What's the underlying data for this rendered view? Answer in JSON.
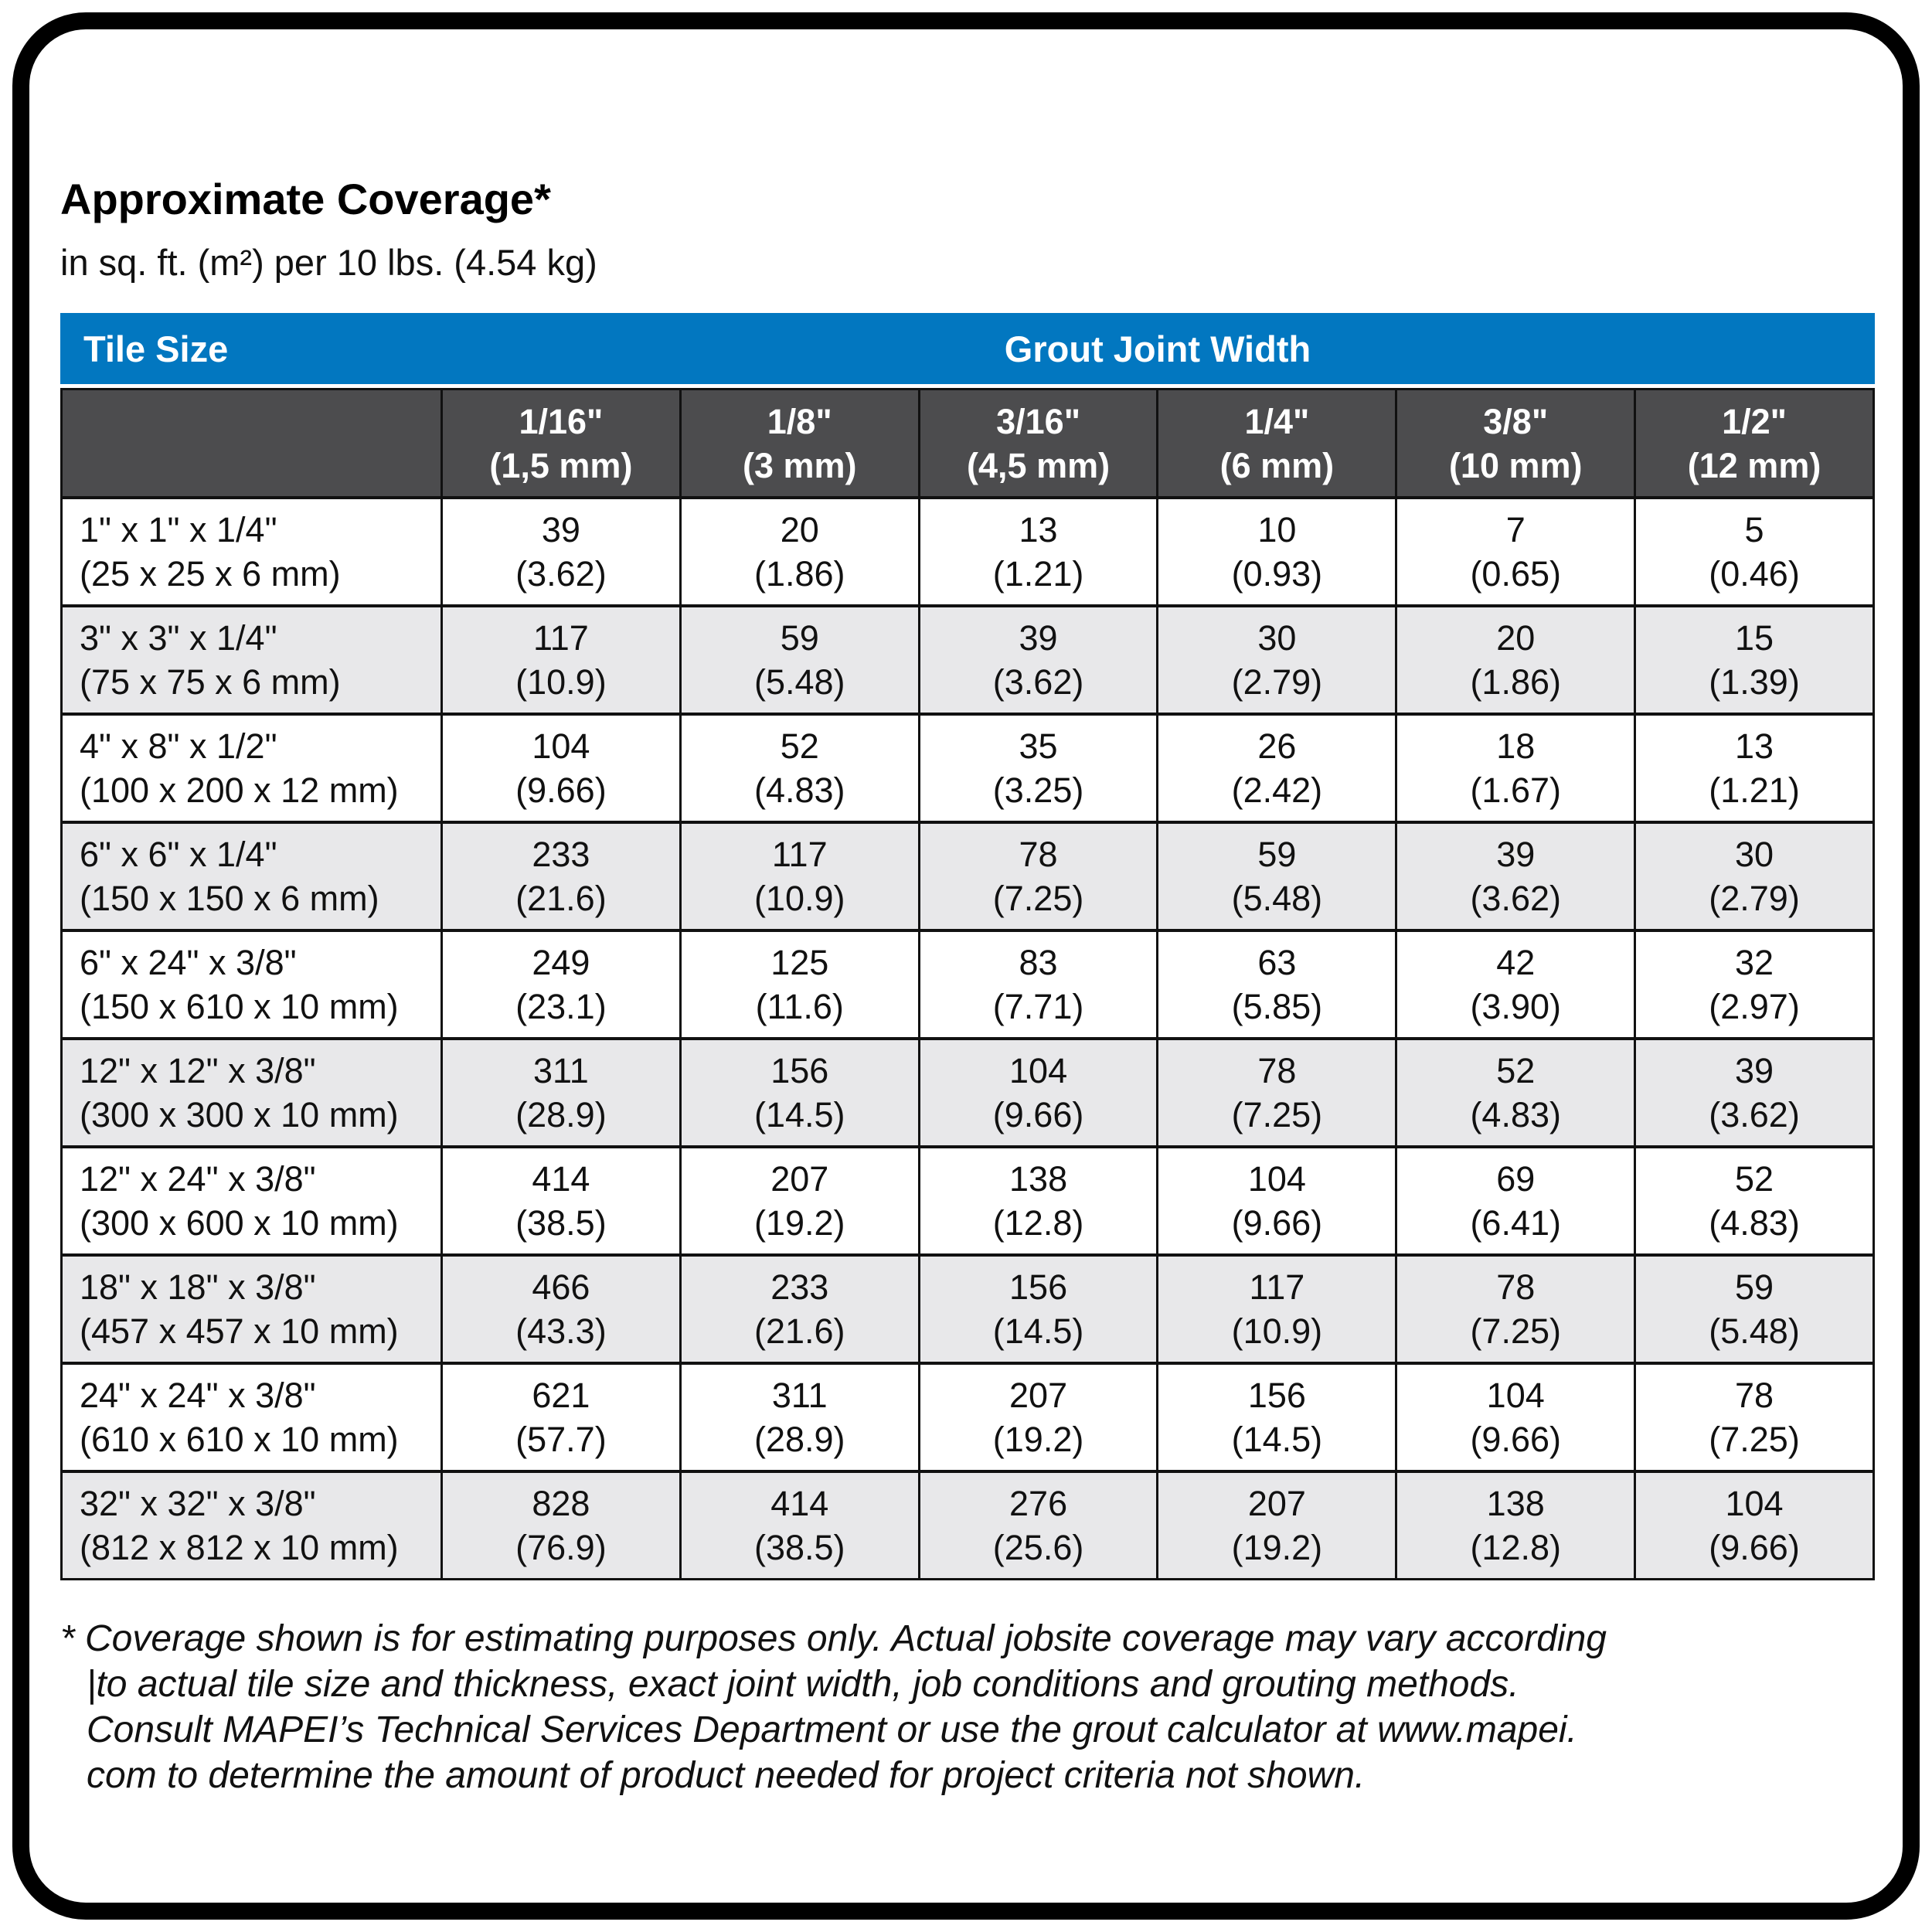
{
  "title": "Approximate Coverage*",
  "subtitle": "in sq. ft. (m²) per 10 lbs. (4.54 kg)",
  "table": {
    "corner_header": "Tile Size",
    "group_header": "Grout Joint Width",
    "columns": [
      {
        "label": "1/16\"",
        "metric": "(1,5 mm)"
      },
      {
        "label": "1/8\"",
        "metric": "(3 mm)"
      },
      {
        "label": "3/16\"",
        "metric": "(4,5 mm)"
      },
      {
        "label": "1/4\"",
        "metric": "(6 mm)"
      },
      {
        "label": "3/8\"",
        "metric": "(10 mm)"
      },
      {
        "label": "1/2\"",
        "metric": "(12 mm)"
      }
    ],
    "rows": [
      {
        "size_in": "1\" x 1\" x 1/4\"",
        "size_mm": "(25 x 25 x 6 mm)",
        "cells": [
          {
            "sqft": "39",
            "m2": "(3.62)"
          },
          {
            "sqft": "20",
            "m2": "(1.86)"
          },
          {
            "sqft": "13",
            "m2": "(1.21)"
          },
          {
            "sqft": "10",
            "m2": "(0.93)"
          },
          {
            "sqft": "7",
            "m2": "(0.65)"
          },
          {
            "sqft": "5",
            "m2": "(0.46)"
          }
        ]
      },
      {
        "size_in": "3\" x 3\" x 1/4\"",
        "size_mm": "(75 x 75 x 6 mm)",
        "cells": [
          {
            "sqft": "117",
            "m2": "(10.9)"
          },
          {
            "sqft": "59",
            "m2": "(5.48)"
          },
          {
            "sqft": "39",
            "m2": "(3.62)"
          },
          {
            "sqft": "30",
            "m2": "(2.79)"
          },
          {
            "sqft": "20",
            "m2": "(1.86)"
          },
          {
            "sqft": "15",
            "m2": "(1.39)"
          }
        ]
      },
      {
        "size_in": "4\" x 8\" x 1/2\"",
        "size_mm": "(100 x 200 x 12 mm)",
        "cells": [
          {
            "sqft": "104",
            "m2": "(9.66)"
          },
          {
            "sqft": "52",
            "m2": "(4.83)"
          },
          {
            "sqft": "35",
            "m2": "(3.25)"
          },
          {
            "sqft": "26",
            "m2": "(2.42)"
          },
          {
            "sqft": "18",
            "m2": "(1.67)"
          },
          {
            "sqft": "13",
            "m2": "(1.21)"
          }
        ]
      },
      {
        "size_in": "6\" x 6\" x 1/4\"",
        "size_mm": "(150 x 150 x 6 mm)",
        "cells": [
          {
            "sqft": "233",
            "m2": "(21.6)"
          },
          {
            "sqft": "117",
            "m2": "(10.9)"
          },
          {
            "sqft": "78",
            "m2": "(7.25)"
          },
          {
            "sqft": "59",
            "m2": "(5.48)"
          },
          {
            "sqft": "39",
            "m2": "(3.62)"
          },
          {
            "sqft": "30",
            "m2": "(2.79)"
          }
        ]
      },
      {
        "size_in": "6\" x 24\" x 3/8\"",
        "size_mm": "(150 x 610 x 10 mm)",
        "cells": [
          {
            "sqft": "249",
            "m2": "(23.1)"
          },
          {
            "sqft": "125",
            "m2": "(11.6)"
          },
          {
            "sqft": "83",
            "m2": "(7.71)"
          },
          {
            "sqft": "63",
            "m2": "(5.85)"
          },
          {
            "sqft": "42",
            "m2": "(3.90)"
          },
          {
            "sqft": "32",
            "m2": "(2.97)"
          }
        ]
      },
      {
        "size_in": "12\" x 12\" x 3/8\"",
        "size_mm": "(300 x 300 x 10 mm)",
        "cells": [
          {
            "sqft": "311",
            "m2": "(28.9)"
          },
          {
            "sqft": "156",
            "m2": "(14.5)"
          },
          {
            "sqft": "104",
            "m2": "(9.66)"
          },
          {
            "sqft": "78",
            "m2": "(7.25)"
          },
          {
            "sqft": "52",
            "m2": "(4.83)"
          },
          {
            "sqft": "39",
            "m2": "(3.62)"
          }
        ]
      },
      {
        "size_in": "12\" x 24\" x 3/8\"",
        "size_mm": "(300 x 600 x 10 mm)",
        "cells": [
          {
            "sqft": "414",
            "m2": "(38.5)"
          },
          {
            "sqft": "207",
            "m2": "(19.2)"
          },
          {
            "sqft": "138",
            "m2": "(12.8)"
          },
          {
            "sqft": "104",
            "m2": "(9.66)"
          },
          {
            "sqft": "69",
            "m2": "(6.41)"
          },
          {
            "sqft": "52",
            "m2": "(4.83)"
          }
        ]
      },
      {
        "size_in": "18\" x 18\" x 3/8\"",
        "size_mm": "(457 x 457 x 10 mm)",
        "cells": [
          {
            "sqft": "466",
            "m2": "(43.3)"
          },
          {
            "sqft": "233",
            "m2": "(21.6)"
          },
          {
            "sqft": "156",
            "m2": "(14.5)"
          },
          {
            "sqft": "117",
            "m2": "(10.9)"
          },
          {
            "sqft": "78",
            "m2": "(7.25)"
          },
          {
            "sqft": "59",
            "m2": "(5.48)"
          }
        ]
      },
      {
        "size_in": "24\" x 24\" x 3/8\"",
        "size_mm": "(610 x 610 x 10 mm)",
        "cells": [
          {
            "sqft": "621",
            "m2": "(57.7)"
          },
          {
            "sqft": "311",
            "m2": "(28.9)"
          },
          {
            "sqft": "207",
            "m2": "(19.2)"
          },
          {
            "sqft": "156",
            "m2": "(14.5)"
          },
          {
            "sqft": "104",
            "m2": "(9.66)"
          },
          {
            "sqft": "78",
            "m2": "(7.25)"
          }
        ]
      },
      {
        "size_in": "32\" x 32\" x 3/8\"",
        "size_mm": "(812 x 812 x 10 mm)",
        "cells": [
          {
            "sqft": "828",
            "m2": "(76.9)"
          },
          {
            "sqft": "414",
            "m2": "(38.5)"
          },
          {
            "sqft": "276",
            "m2": "(25.6)"
          },
          {
            "sqft": "207",
            "m2": "(19.2)"
          },
          {
            "sqft": "138",
            "m2": "(12.8)"
          },
          {
            "sqft": "104",
            "m2": "(9.66)"
          }
        ]
      }
    ]
  },
  "footnote_text": "* Coverage shown is for estimating purposes only. Actual jobsite coverage may vary according\n|to actual tile size and thickness, exact joint width, job conditions and grouting methods.\nConsult MAPEI’s Technical Services Department or use the grout calculator at www.mapei.\ncom to determine the amount of product needed for project criteria not shown.",
  "colors": {
    "header_blue": "#0277C0",
    "header_gray": "#4C4C4E",
    "row_shade": "#E8E8EA",
    "border_black": "#111111"
  }
}
